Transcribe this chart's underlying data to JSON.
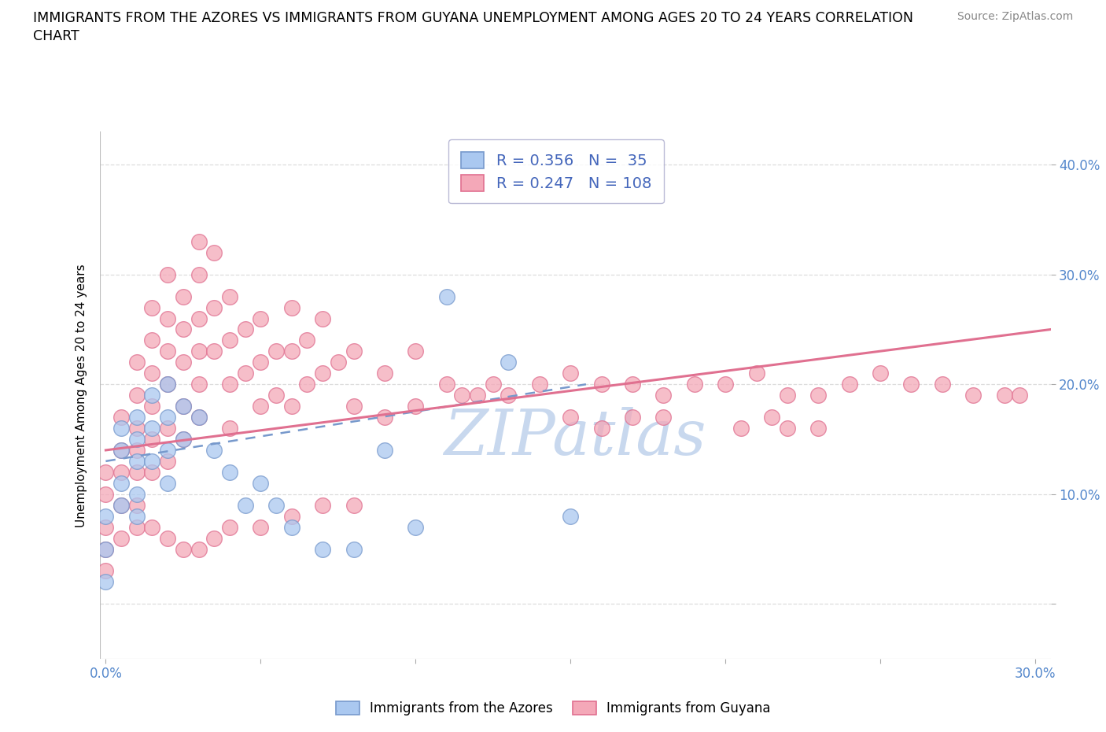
{
  "title_line1": "IMMIGRANTS FROM THE AZORES VS IMMIGRANTS FROM GUYANA UNEMPLOYMENT AMONG AGES 20 TO 24 YEARS CORRELATION",
  "title_line2": "CHART",
  "source": "Source: ZipAtlas.com",
  "ylabel": "Unemployment Among Ages 20 to 24 years",
  "xlim": [
    -0.002,
    0.305
  ],
  "ylim": [
    -0.05,
    0.43
  ],
  "x_ticks": [
    0.0,
    0.05,
    0.1,
    0.15,
    0.2,
    0.25,
    0.3
  ],
  "x_tick_labels": [
    "0.0%",
    "",
    "",
    "",
    "",
    "",
    "30.0%"
  ],
  "y_ticks": [
    0.0,
    0.1,
    0.2,
    0.3,
    0.4
  ],
  "y_tick_labels_right": [
    "",
    "10.0%",
    "20.0%",
    "30.0%",
    "40.0%"
  ],
  "azores_color": "#aac8f0",
  "guyana_color": "#f4a8b8",
  "azores_edge_color": "#7799cc",
  "guyana_edge_color": "#e07090",
  "azores_line_color": "#7799cc",
  "guyana_line_color": "#e07090",
  "azores_R": 0.356,
  "azores_N": 35,
  "guyana_R": 0.247,
  "guyana_N": 108,
  "legend_text_color": "#4466bb",
  "tick_color": "#5588cc",
  "watermark_color": "#c8d8ee",
  "background_color": "#ffffff",
  "grid_color": "#dddddd",
  "azores_scatter_x": [
    0.0,
    0.0,
    0.0,
    0.005,
    0.005,
    0.005,
    0.005,
    0.01,
    0.01,
    0.01,
    0.01,
    0.01,
    0.015,
    0.015,
    0.015,
    0.02,
    0.02,
    0.02,
    0.02,
    0.025,
    0.025,
    0.03,
    0.035,
    0.04,
    0.045,
    0.05,
    0.055,
    0.06,
    0.07,
    0.08,
    0.09,
    0.1,
    0.11,
    0.13,
    0.15
  ],
  "azores_scatter_y": [
    0.08,
    0.05,
    0.02,
    0.16,
    0.14,
    0.11,
    0.09,
    0.17,
    0.15,
    0.13,
    0.1,
    0.08,
    0.19,
    0.16,
    0.13,
    0.2,
    0.17,
    0.14,
    0.11,
    0.18,
    0.15,
    0.17,
    0.14,
    0.12,
    0.09,
    0.11,
    0.09,
    0.07,
    0.05,
    0.05,
    0.14,
    0.07,
    0.28,
    0.22,
    0.08
  ],
  "guyana_scatter_x": [
    0.0,
    0.0,
    0.0,
    0.0,
    0.0,
    0.005,
    0.005,
    0.005,
    0.005,
    0.005,
    0.01,
    0.01,
    0.01,
    0.01,
    0.01,
    0.01,
    0.01,
    0.015,
    0.015,
    0.015,
    0.015,
    0.015,
    0.015,
    0.02,
    0.02,
    0.02,
    0.02,
    0.02,
    0.02,
    0.025,
    0.025,
    0.025,
    0.025,
    0.025,
    0.03,
    0.03,
    0.03,
    0.03,
    0.03,
    0.03,
    0.035,
    0.035,
    0.035,
    0.04,
    0.04,
    0.04,
    0.04,
    0.045,
    0.045,
    0.05,
    0.05,
    0.05,
    0.055,
    0.055,
    0.06,
    0.06,
    0.06,
    0.065,
    0.065,
    0.07,
    0.07,
    0.075,
    0.08,
    0.08,
    0.09,
    0.09,
    0.1,
    0.1,
    0.11,
    0.115,
    0.12,
    0.125,
    0.13,
    0.14,
    0.15,
    0.16,
    0.17,
    0.18,
    0.19,
    0.2,
    0.21,
    0.22,
    0.23,
    0.24,
    0.25,
    0.26,
    0.27,
    0.28,
    0.29,
    0.295,
    0.22,
    0.23,
    0.15,
    0.16,
    0.17,
    0.18,
    0.205,
    0.215,
    0.015,
    0.02,
    0.025,
    0.03,
    0.035,
    0.04,
    0.05,
    0.06,
    0.07,
    0.08
  ],
  "guyana_scatter_y": [
    0.12,
    0.1,
    0.07,
    0.05,
    0.03,
    0.17,
    0.14,
    0.12,
    0.09,
    0.06,
    0.22,
    0.19,
    0.16,
    0.14,
    0.12,
    0.09,
    0.07,
    0.27,
    0.24,
    0.21,
    0.18,
    0.15,
    0.12,
    0.3,
    0.26,
    0.23,
    0.2,
    0.16,
    0.13,
    0.28,
    0.25,
    0.22,
    0.18,
    0.15,
    0.33,
    0.3,
    0.26,
    0.23,
    0.2,
    0.17,
    0.32,
    0.27,
    0.23,
    0.28,
    0.24,
    0.2,
    0.16,
    0.25,
    0.21,
    0.26,
    0.22,
    0.18,
    0.23,
    0.19,
    0.27,
    0.23,
    0.18,
    0.24,
    0.2,
    0.26,
    0.21,
    0.22,
    0.23,
    0.18,
    0.21,
    0.17,
    0.23,
    0.18,
    0.2,
    0.19,
    0.19,
    0.2,
    0.19,
    0.2,
    0.21,
    0.2,
    0.2,
    0.19,
    0.2,
    0.2,
    0.21,
    0.19,
    0.19,
    0.2,
    0.21,
    0.2,
    0.2,
    0.19,
    0.19,
    0.19,
    0.16,
    0.16,
    0.17,
    0.16,
    0.17,
    0.17,
    0.16,
    0.17,
    0.07,
    0.06,
    0.05,
    0.05,
    0.06,
    0.07,
    0.07,
    0.08,
    0.09,
    0.09
  ]
}
